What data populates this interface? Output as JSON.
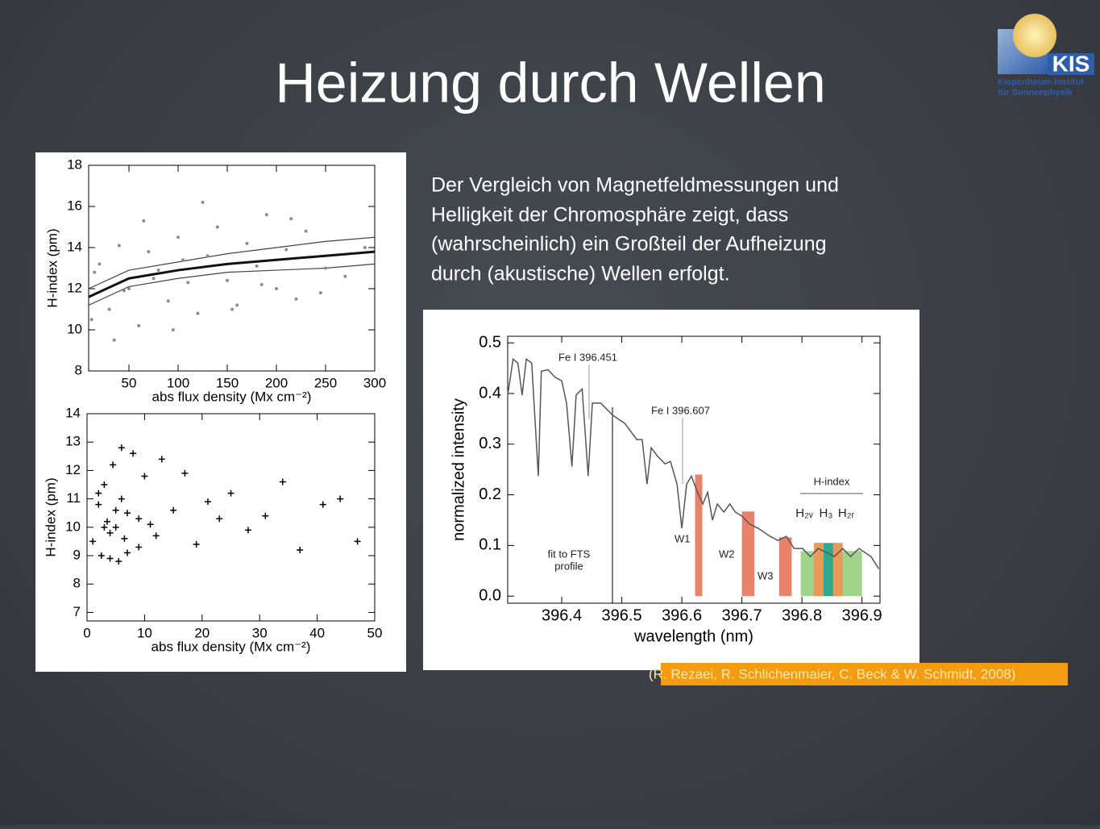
{
  "header": {
    "title": "Heizung durch Wellen",
    "logo": {
      "name": "KIS",
      "line1": "Kiepenheuer-Institut",
      "line2": "für Sonnenphysik"
    }
  },
  "body": {
    "lines": [
      "Der Vergleich von Magnetfeldmessungen und",
      "Helligkeit der Chromosphäre zeigt, dass",
      "(wahrscheinlich) ein Großteil der Aufheizung",
      "durch (akustische) Wellen erfolgt."
    ]
  },
  "citation": "(R. Rezaei, R. Schlichenmaier, C. Beck & W. Schmidt, 2008)",
  "chart_data": [
    {
      "type": "scatter",
      "xlabel": "abs flux density (Mx cm⁻²)",
      "ylabel": "H-index (pm)",
      "xlim": [
        9,
        300
      ],
      "ylim": [
        8,
        18
      ],
      "xticks": [
        50,
        100,
        150,
        200,
        250,
        300
      ],
      "yticks": [
        8,
        10,
        12,
        14,
        16,
        18
      ],
      "points": {
        "color": "#8c8c8c",
        "x": [
          12,
          20,
          30,
          40,
          50,
          60,
          70,
          80,
          90,
          100,
          110,
          120,
          130,
          140,
          150,
          160,
          170,
          180,
          190,
          200,
          210,
          220,
          230,
          250,
          270,
          290,
          35,
          65,
          95,
          125,
          155,
          185,
          215,
          245,
          15,
          45,
          75,
          105
        ],
        "values": [
          10.5,
          13.2,
          11.0,
          14.1,
          12.0,
          10.2,
          13.8,
          12.9,
          11.4,
          14.5,
          12.3,
          10.8,
          13.6,
          15.0,
          12.4,
          11.2,
          14.2,
          13.1,
          15.6,
          12.0,
          13.9,
          11.5,
          14.8,
          13.0,
          12.6,
          14.0,
          9.5,
          15.3,
          10.0,
          16.2,
          11.0,
          12.2,
          15.4,
          11.8,
          12.8,
          11.9,
          12.5,
          13.4
        ]
      },
      "fits": [
        {
          "color": "#111111",
          "x": [
            9,
            50,
            100,
            150,
            200,
            250,
            300
          ],
          "values": [
            11.6,
            12.5,
            12.9,
            13.2,
            13.4,
            13.6,
            13.8
          ]
        },
        {
          "color": "#444444",
          "x": [
            9,
            50,
            100,
            150,
            200,
            250,
            300
          ],
          "values": [
            12.0,
            12.9,
            13.3,
            13.7,
            14.0,
            14.3,
            14.5
          ]
        },
        {
          "color": "#444444",
          "x": [
            9,
            50,
            100,
            150,
            200,
            250,
            300
          ],
          "values": [
            11.2,
            12.1,
            12.5,
            12.8,
            12.9,
            13.0,
            13.2
          ]
        }
      ]
    },
    {
      "type": "scatter",
      "xlabel": "abs flux density (Mx cm⁻²)",
      "ylabel": "H-index (pm)",
      "xlim": [
        0,
        50
      ],
      "ylim": [
        6.7,
        14
      ],
      "xticks": [
        0,
        10,
        20,
        30,
        40,
        50
      ],
      "yticks": [
        7,
        8,
        9,
        10,
        11,
        12,
        13,
        14
      ],
      "points": {
        "color": "#000000",
        "x": [
          1,
          2,
          2.5,
          3,
          3.5,
          4,
          4.5,
          5,
          5.5,
          6,
          6.5,
          7,
          8,
          9,
          10,
          11,
          12,
          13,
          15,
          17,
          19,
          21,
          23,
          25,
          28,
          31,
          34,
          37,
          41,
          44,
          47,
          3,
          5,
          7,
          4,
          6,
          2,
          9
        ],
        "values": [
          9.5,
          10.8,
          9.0,
          11.5,
          10.2,
          9.8,
          12.2,
          10.0,
          8.8,
          11.0,
          9.6,
          10.5,
          12.6,
          9.3,
          11.8,
          10.1,
          9.7,
          12.4,
          10.6,
          11.9,
          9.4,
          10.9,
          10.3,
          11.2,
          9.9,
          10.4,
          11.6,
          9.2,
          10.8,
          11.0,
          9.5,
          10.0,
          10.6,
          9.1,
          8.9,
          12.8,
          11.2,
          10.3
        ]
      }
    },
    {
      "type": "line",
      "xlabel": "wavelength (nm)",
      "ylabel": "normalized intensity",
      "xlim": [
        396.31,
        396.93
      ],
      "ylim": [
        -0.014,
        0.513
      ],
      "xticks": [
        396.4,
        396.5,
        396.6,
        396.7,
        396.8,
        396.9
      ],
      "yticks": [
        {
          "value": 0,
          "label": "0.0"
        },
        0.1,
        0.2,
        0.3,
        0.4,
        0.5
      ],
      "color": "#555555",
      "x": [
        396.31,
        396.319,
        396.327,
        396.334,
        396.341,
        396.35,
        396.361,
        396.366,
        396.377,
        396.389,
        396.4,
        396.408,
        396.417,
        396.424,
        396.434,
        396.444,
        396.451,
        396.465,
        396.485,
        396.505,
        396.525,
        396.534,
        396.542,
        396.549,
        396.559,
        396.572,
        396.581,
        396.592,
        396.6,
        396.608,
        396.616,
        396.626,
        396.635,
        396.643,
        396.651,
        396.659,
        396.67,
        396.68,
        396.689,
        396.7,
        396.713,
        396.727,
        396.747,
        396.76,
        396.774,
        396.787,
        396.801,
        396.814,
        396.827,
        396.841,
        396.854,
        396.868,
        396.881,
        396.895,
        396.915,
        396.928
      ],
      "values": [
        0.397,
        0.468,
        0.46,
        0.397,
        0.468,
        0.46,
        0.237,
        0.444,
        0.447,
        0.432,
        0.425,
        0.381,
        0.256,
        0.397,
        0.409,
        0.237,
        0.381,
        0.381,
        0.357,
        0.341,
        0.309,
        0.309,
        0.221,
        0.293,
        0.277,
        0.261,
        0.266,
        0.221,
        0.134,
        0.221,
        0.237,
        0.205,
        0.182,
        0.205,
        0.15,
        0.182,
        0.166,
        0.182,
        0.166,
        0.158,
        0.142,
        0.134,
        0.118,
        0.11,
        0.118,
        0.094,
        0.094,
        0.078,
        0.094,
        0.086,
        0.078,
        0.094,
        0.078,
        0.094,
        0.078,
        0.054
      ],
      "bars": [
        {
          "x0": 396.798,
          "x1": 396.9,
          "value": 0.089,
          "color": "#9fd48a"
        },
        {
          "x0": 396.622,
          "x1": 396.634,
          "value": 0.24,
          "color": "#e8826a"
        },
        {
          "x0": 396.7,
          "x1": 396.721,
          "value": 0.167,
          "color": "#e8826a"
        },
        {
          "x0": 396.762,
          "x1": 396.783,
          "value": 0.116,
          "color": "#e8826a"
        },
        {
          "x0": 396.82,
          "x1": 396.836,
          "value": 0.105,
          "color": "#e89a5a"
        },
        {
          "x0": 396.836,
          "x1": 396.852,
          "value": 0.105,
          "color": "#2fa88e"
        },
        {
          "x0": 396.852,
          "x1": 396.868,
          "value": 0.105,
          "color": "#e89a5a"
        }
      ],
      "annotations": [
        "Fe I 396.451",
        "Fe I 396.607",
        "W1",
        "W2",
        "W3",
        "fit to FTS",
        "profile",
        "H-index",
        "H₂ᵥ",
        "H₃",
        "H₂ᵣ"
      ]
    }
  ]
}
